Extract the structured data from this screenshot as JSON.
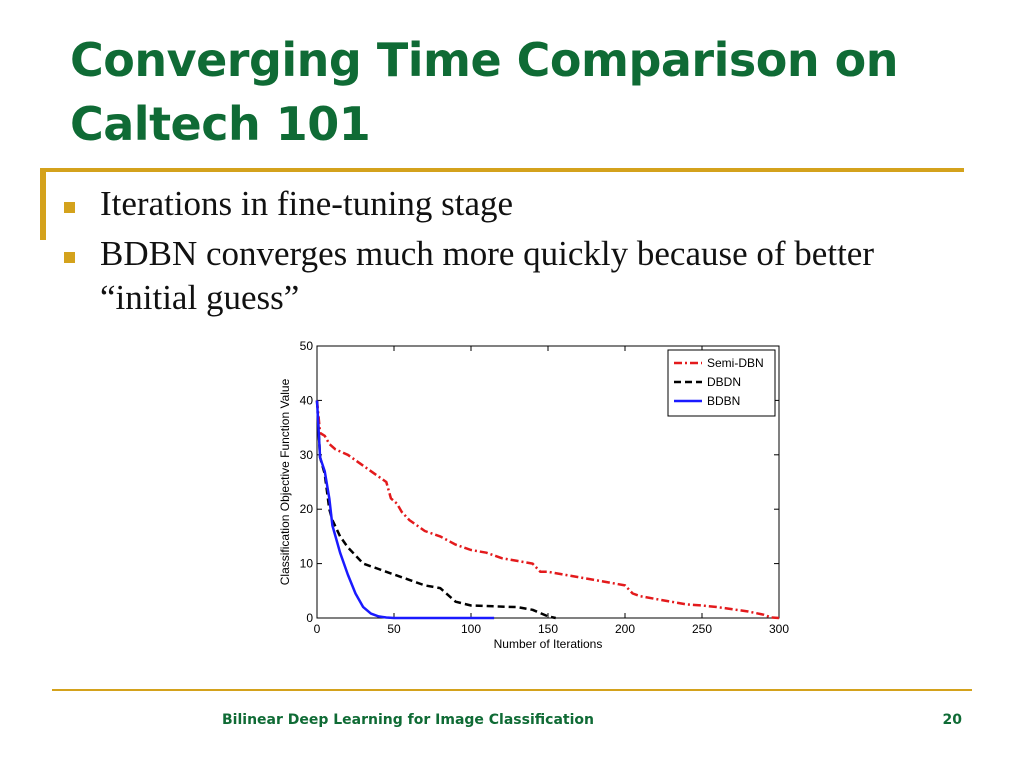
{
  "slide": {
    "title": "Converging Time Comparison on Caltech 101",
    "bullets": [
      "Iterations in fine-tuning stage",
      "BDBN converges much more quickly because of better “initial guess”"
    ],
    "footer": "Bilinear Deep Learning for Image Classification",
    "page_number": "20"
  },
  "colors": {
    "title": "#0f6b35",
    "accent": "#d4a21c"
  },
  "chart_data": {
    "type": "line",
    "xlabel": "Number of Iterations",
    "ylabel": "Classification Objective Function Value",
    "xlim": [
      0,
      300
    ],
    "ylim": [
      0,
      50
    ],
    "xticks": [
      0,
      50,
      100,
      150,
      200,
      250,
      300
    ],
    "yticks": [
      0,
      10,
      20,
      30,
      40,
      50
    ],
    "legend_position": "top-right",
    "series": [
      {
        "name": "Semi-DBN",
        "color": "#e31a1c",
        "style": "dashdot",
        "x": [
          0,
          2,
          5,
          8,
          12,
          20,
          30,
          40,
          45,
          48,
          52,
          55,
          60,
          65,
          70,
          80,
          90,
          100,
          110,
          120,
          130,
          140,
          145,
          150,
          160,
          170,
          180,
          190,
          200,
          205,
          210,
          220,
          230,
          240,
          250,
          260,
          270,
          280,
          290,
          295,
          300
        ],
        "y": [
          40,
          34,
          33.5,
          32,
          31,
          30,
          28,
          26,
          25,
          22,
          21,
          19.5,
          18,
          17,
          16,
          15,
          13.5,
          12.5,
          12,
          11,
          10.5,
          10,
          8.5,
          8.5,
          8,
          7.5,
          7,
          6.5,
          6,
          4.5,
          4,
          3.5,
          3,
          2.5,
          2.3,
          2,
          1.6,
          1.2,
          0.6,
          0.1,
          0
        ]
      },
      {
        "name": "DBDN",
        "color": "#000000",
        "style": "dashed",
        "x": [
          0,
          2,
          5,
          8,
          10,
          15,
          20,
          25,
          30,
          35,
          40,
          45,
          50,
          60,
          70,
          80,
          90,
          100,
          110,
          120,
          130,
          140,
          150,
          155
        ],
        "y": [
          40,
          29.5,
          26.5,
          20,
          18,
          15,
          13,
          11.5,
          10,
          9.5,
          9,
          8.5,
          8,
          7,
          6,
          5.5,
          3,
          2.3,
          2.2,
          2.1,
          2,
          1.5,
          0.3,
          0
        ]
      },
      {
        "name": "BDBN",
        "color": "#1a1aff",
        "style": "solid",
        "x": [
          0,
          2,
          5,
          8,
          10,
          12,
          15,
          20,
          25,
          30,
          35,
          40,
          45,
          50,
          60,
          80,
          100,
          115
        ],
        "y": [
          40,
          29.5,
          27,
          22,
          17,
          15,
          12,
          8,
          4.5,
          2,
          0.8,
          0.3,
          0.1,
          0,
          0,
          0,
          0,
          0
        ]
      }
    ]
  }
}
